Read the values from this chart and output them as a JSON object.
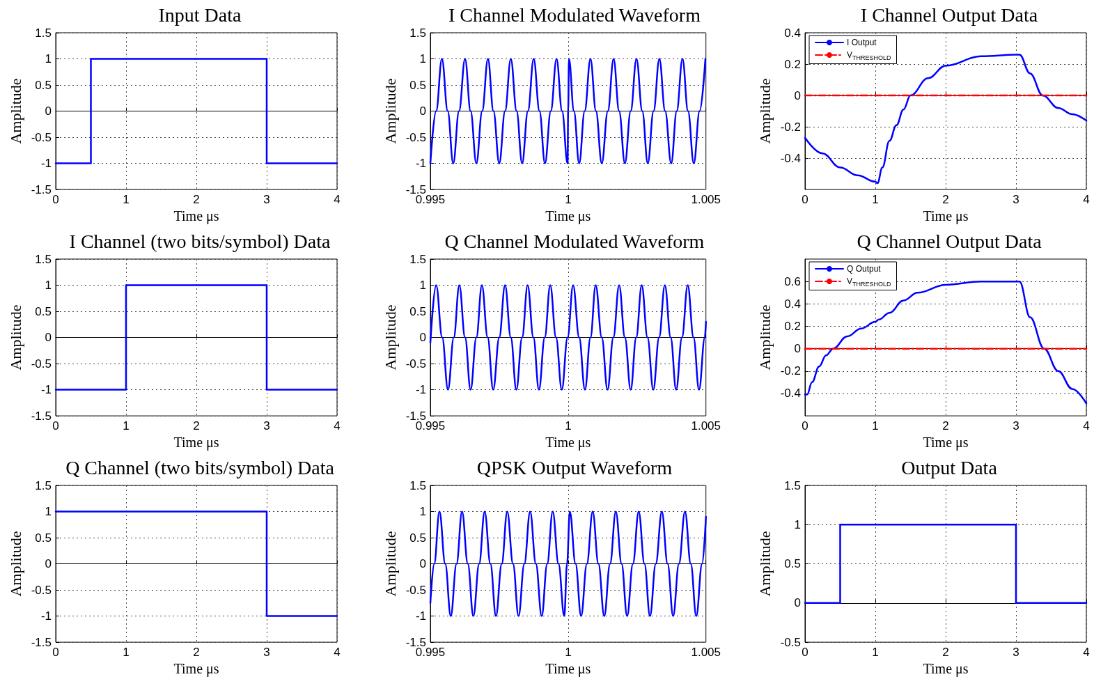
{
  "chart_data": [
    {
      "type": "step",
      "title": "Input Data",
      "xlabel": "Time μs",
      "ylabel": "Amplitude",
      "xlim": [
        0,
        4
      ],
      "xticks": [
        0,
        1,
        2,
        3,
        4
      ],
      "ylim": [
        -1.5,
        1.5
      ],
      "yticks": [
        -1.5,
        -1,
        -0.5,
        0,
        0.5,
        1,
        1.5
      ],
      "grid": true,
      "series": [
        {
          "color": "#0000ff",
          "x": [
            0,
            0.5,
            3,
            4
          ],
          "values": [
            -1,
            1,
            -1,
            -1
          ]
        }
      ]
    },
    {
      "type": "line",
      "title": "I Channel Modulated Waveform",
      "xlabel": "Time μs",
      "ylabel": "Amplitude",
      "xlim": [
        0.995,
        1.005
      ],
      "xticks": [
        0.995,
        1,
        1.005
      ],
      "ylim": [
        -1.5,
        1.5
      ],
      "yticks": [
        -1.5,
        -1,
        -0.5,
        0,
        0.5,
        1,
        1.5
      ],
      "grid": true,
      "series": [
        {
          "color": "#0000ff",
          "x": [
            0.995,
            0.99521,
            0.99542,
            0.99563,
            0.99583,
            0.99604,
            0.99626,
            0.99646,
            0.99667,
            0.99688,
            0.99709,
            0.99729,
            0.9975,
            0.99771,
            0.99792,
            0.99813,
            0.99833,
            0.99854,
            0.99875,
            0.99896,
            0.99916,
            0.99937,
            0.99958,
            0.99978,
            0.99998,
            1,
            1.00003,
            1.00021,
            1.0004,
            1.0006,
            1.00081,
            1.00101,
            1.00122,
            1.00144,
            1.00165,
            1.00185,
            1.00206,
            1.00227,
            1.00248,
            1.00269,
            1.00289,
            1.0031,
            1.00331,
            1.00352,
            1.00374,
            1.00394,
            1.00415,
            1.00435,
            1.00456,
            1.00477,
            1.00498
          ],
          "values": [
            -1,
            0,
            1,
            0,
            -1,
            0,
            1,
            0,
            -1,
            0,
            1,
            0,
            -1,
            0,
            1,
            0,
            -1,
            0,
            1,
            0,
            -1,
            0,
            1,
            0,
            -1,
            0,
            1,
            0,
            -1,
            0,
            1,
            0,
            -1,
            0,
            1,
            0,
            -1,
            0,
            1,
            0,
            -1,
            0,
            1,
            0,
            -1,
            0,
            1,
            0,
            -1,
            0,
            1
          ]
        }
      ]
    },
    {
      "type": "line",
      "title": "I Channel Output Data",
      "xlabel": "Time μs",
      "ylabel": "Amplitude",
      "xlim": [
        0,
        4
      ],
      "xticks": [
        0,
        1,
        2,
        3,
        4
      ],
      "ylim": [
        -0.6,
        0.4
      ],
      "yticks": [
        -0.4,
        -0.2,
        0,
        0.2,
        0.4
      ],
      "grid": true,
      "legend": "top left",
      "series": [
        {
          "name": "I Output",
          "color": "#0000ff",
          "x": [
            0,
            0.25,
            0.5,
            0.75,
            1,
            1.03,
            1.1,
            1.2,
            1.3,
            1.4,
            1.5,
            1.75,
            2,
            2.5,
            3,
            3.05,
            3.2,
            3.38,
            3.6,
            3.8,
            4
          ],
          "values": [
            -0.27,
            -0.37,
            -0.46,
            -0.51,
            -0.55,
            -0.56,
            -0.46,
            -0.29,
            -0.19,
            -0.09,
            0,
            0.11,
            0.19,
            0.25,
            0.26,
            0.26,
            0.14,
            0,
            -0.08,
            -0.12,
            -0.16
          ]
        },
        {
          "name": "V$_{THRESHOLD}$",
          "color": "#ff0000",
          "line_style": "dashed",
          "x": [
            0,
            4
          ],
          "values": [
            0,
            0
          ]
        }
      ]
    },
    {
      "type": "step",
      "title": "I Channel (two bits/symbol) Data",
      "xlabel": "Time μs",
      "ylabel": "Amplitude",
      "xlim": [
        0,
        4
      ],
      "xticks": [
        0,
        1,
        2,
        3,
        4
      ],
      "ylim": [
        -1.5,
        1.5
      ],
      "yticks": [
        -1.5,
        -1,
        -0.5,
        0,
        0.5,
        1,
        1.5
      ],
      "grid": true,
      "series": [
        {
          "color": "#0000ff",
          "x": [
            0,
            1,
            3,
            4
          ],
          "values": [
            -1,
            1,
            -1,
            -1
          ]
        }
      ]
    },
    {
      "type": "line",
      "title": "Q Channel Modulated Waveform",
      "xlabel": "Time μs",
      "ylabel": "Amplitude",
      "xlim": [
        0.995,
        1.005
      ],
      "xticks": [
        0.995,
        1,
        1.005
      ],
      "ylim": [
        -1.5,
        1.5
      ],
      "yticks": [
        -1.5,
        -1,
        -0.5,
        0,
        0.5,
        1,
        1.5
      ],
      "grid": true,
      "series": [
        {
          "color": "#0000ff",
          "x": [
            0.995,
            0.99521,
            0.99543,
            0.99564,
            0.99585,
            0.99605,
            0.99626,
            0.99646,
            0.99667,
            0.99687,
            0.99708,
            0.99728,
            0.9975,
            0.99771,
            0.99792,
            0.99812,
            0.99833,
            0.99853,
            0.99874,
            0.99894,
            0.99915,
            0.99935,
            0.99956,
            0.99977,
            0.99998,
            1.00018,
            1.0004,
            1.00061,
            1.00081,
            1.001,
            1.00122,
            1.00143,
            1.00164,
            1.00185,
            1.00206,
            1.00227,
            1.00247,
            1.00267,
            1.00288,
            1.00309,
            1.0033,
            1.00351,
            1.00372,
            1.00392,
            1.00413,
            1.00434,
            1.00455,
            1.00475,
            1.00496,
            1.005
          ],
          "values": [
            -0.1,
            1,
            0,
            -1,
            0,
            1,
            0,
            -1,
            0,
            1,
            0,
            -1,
            0,
            1,
            0,
            -1,
            0,
            1,
            0,
            -1,
            0,
            1,
            0,
            -1,
            0,
            1,
            0,
            -1,
            0,
            1,
            0,
            -1,
            0,
            1,
            0,
            -1,
            0,
            1,
            0,
            -1,
            0,
            1,
            0,
            -1,
            0,
            1,
            0,
            -1,
            0,
            0.3
          ]
        }
      ]
    },
    {
      "type": "line",
      "title": "Q Channel Output Data",
      "xlabel": "Time μs",
      "ylabel": "Amplitude",
      "xlim": [
        0,
        4
      ],
      "xticks": [
        0,
        1,
        2,
        3,
        4
      ],
      "ylim": [
        -0.6,
        0.8
      ],
      "yticks": [
        -0.4,
        -0.2,
        0,
        0.2,
        0.4,
        0.6
      ],
      "grid": true,
      "legend": "top left",
      "series": [
        {
          "name": "Q Output",
          "color": "#0000ff",
          "x": [
            0,
            0.03,
            0.1,
            0.2,
            0.3,
            0.4,
            0.6,
            0.8,
            1,
            1.05,
            1.2,
            1.4,
            1.6,
            2,
            2.5,
            3,
            3.05,
            3.2,
            3.4,
            3.6,
            3.8,
            4
          ],
          "values": [
            -0.41,
            -0.41,
            -0.3,
            -0.16,
            -0.06,
            0,
            0.11,
            0.18,
            0.24,
            0.26,
            0.32,
            0.43,
            0.5,
            0.57,
            0.6,
            0.6,
            0.6,
            0.28,
            0,
            -0.2,
            -0.36,
            -0.49
          ]
        },
        {
          "name": "V$_{THRESHOLD}$",
          "color": "#ff0000",
          "line_style": "dashed",
          "x": [
            0,
            4
          ],
          "values": [
            0,
            0
          ]
        }
      ]
    },
    {
      "type": "step",
      "title": "Q Channel (two bits/symbol) Data",
      "xlabel": "Time μs",
      "ylabel": "Amplitude",
      "xlim": [
        0,
        4
      ],
      "xticks": [
        0,
        1,
        2,
        3,
        4
      ],
      "ylim": [
        -1.5,
        1.5
      ],
      "yticks": [
        -1.5,
        -1,
        -0.5,
        0,
        0.5,
        1,
        1.5
      ],
      "grid": true,
      "series": [
        {
          "color": "#0000ff",
          "x": [
            0,
            3,
            4
          ],
          "values": [
            1,
            -1,
            -1
          ]
        }
      ]
    },
    {
      "type": "line",
      "title": "QPSK Output Waveform",
      "xlabel": "Time μs",
      "ylabel": "Amplitude",
      "xlim": [
        0.995,
        1.005
      ],
      "xticks": [
        0.995,
        1,
        1.005
      ],
      "ylim": [
        -1.5,
        1.5
      ],
      "yticks": [
        -1.5,
        -1,
        -0.5,
        0,
        0.5,
        1,
        1.5
      ],
      "grid": true,
      "series": [
        {
          "color": "#0000ff",
          "x": [
            0.995,
            0.99514,
            0.99533,
            0.99554,
            0.99574,
            0.99595,
            0.99615,
            0.99636,
            0.99656,
            0.99677,
            0.99697,
            0.99718,
            0.99738,
            0.99759,
            0.99779,
            0.998,
            0.9982,
            0.99841,
            0.99862,
            0.99883,
            0.99904,
            0.99924,
            0.99944,
            0.99965,
            0.99986,
            0.99996,
            1.00006,
            1.00027,
            1.00047,
            1.00068,
            1.00089,
            1.0011,
            1.00131,
            1.00152,
            1.00173,
            1.00194,
            1.00214,
            1.00235,
            1.00256,
            1.00277,
            1.00297,
            1.00318,
            1.0034,
            1.00361,
            1.00381,
            1.00402,
            1.00424,
            1.00445,
            1.00465,
            1.00486,
            1.005
          ],
          "values": [
            -0.75,
            0,
            1,
            0,
            -1,
            0,
            1,
            0,
            -1,
            0,
            1,
            0,
            -1,
            0,
            1,
            0,
            -1,
            0,
            1,
            0,
            -1,
            0,
            1,
            0,
            -1,
            0,
            1,
            0,
            -1,
            0,
            1,
            0,
            -1,
            0,
            1,
            0,
            -1,
            0,
            1,
            0,
            -1,
            0,
            1,
            0,
            -1,
            0,
            1,
            0,
            -1,
            0,
            0.9
          ]
        }
      ]
    },
    {
      "type": "step",
      "title": "Output Data",
      "xlabel": "Time μs",
      "ylabel": "Amplitude",
      "xlim": [
        0,
        4
      ],
      "xticks": [
        0,
        1,
        2,
        3,
        4
      ],
      "ylim": [
        -0.5,
        1.5
      ],
      "yticks": [
        -0.5,
        0,
        0.5,
        1,
        1.5
      ],
      "grid": true,
      "series": [
        {
          "color": "#0000ff",
          "x": [
            0,
            0.5,
            3,
            4
          ],
          "values": [
            0,
            1,
            0,
            0
          ]
        }
      ]
    }
  ]
}
